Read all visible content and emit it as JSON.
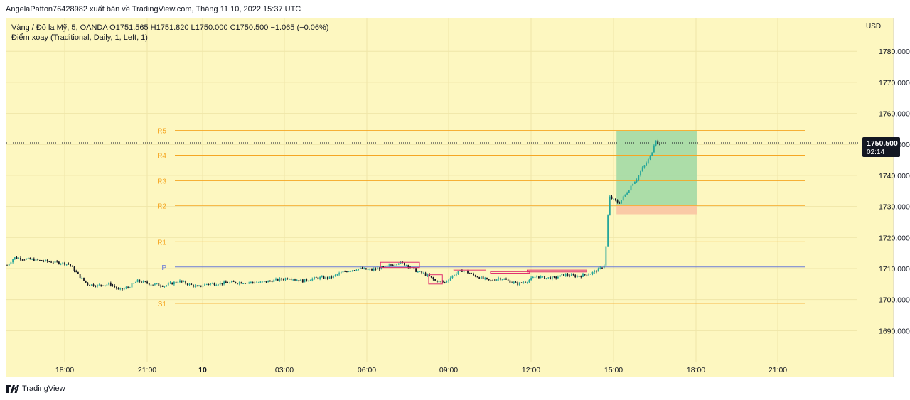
{
  "header": {
    "publisher_line": "AngelaPatton76428982 xuất bản về TradingView.com, Tháng 11 10, 2022 15:37 UTC"
  },
  "legend": {
    "symbol_line": "Vàng / Đô la Mỹ, 5, OANDA  O1751.565  H1751.820  L1750.000  C1750.500  −1.065 (−0.06%)",
    "indicator_line": "Điểm xoay (Traditional, Daily, 1, Left, 1)"
  },
  "footer": {
    "brand": "TradingView"
  },
  "price_scale": {
    "currency": "USD",
    "current_price": "1750.500",
    "countdown": "02:14"
  },
  "colors": {
    "background": "#fdf7c0",
    "up_candle": "#26a69a",
    "down_candle": "#131722",
    "pivot_line": "#f5a623",
    "pivot_p_line": "#6b7bd6",
    "target_zone": "#a3d9a5",
    "stop_zone": "#f9c4a3",
    "range_marker": "#e0306f"
  },
  "chart_data": {
    "type": "candlestick",
    "symbol": "Vàng / Đô la Mỹ, 5, OANDA",
    "ylim": [
      1680,
      1786
    ],
    "y_ticks": [
      1690,
      1700,
      1710,
      1720,
      1730,
      1740,
      1750,
      1760,
      1770,
      1780
    ],
    "y_tick_labels": [
      "1690.000",
      "1700.000",
      "1710.000",
      "1720.000",
      "1730.000",
      "1740.000",
      "1750.000",
      "1760.000",
      "1770.000",
      "1780.000"
    ],
    "x_ticks": [
      "18:00",
      "21:00",
      "10",
      "03:00",
      "06:00",
      "09:00",
      "12:00",
      "15:00",
      "18:00",
      "21:00"
    ],
    "pivot_levels": [
      {
        "label": "R5",
        "value": 1754.5
      },
      {
        "label": "R4",
        "value": 1746.5
      },
      {
        "label": "R3",
        "value": 1738.3
      },
      {
        "label": "R2",
        "value": 1730.3
      },
      {
        "label": "R1",
        "value": 1718.6
      },
      {
        "label": "P",
        "value": 1710.5
      },
      {
        "label": "S1",
        "value": 1698.8
      }
    ],
    "current_price": 1750.5,
    "position": {
      "entry": 1730.5,
      "target": 1754.5,
      "stop": 1727.5,
      "start": "13:55",
      "end": "16:50"
    },
    "price_path": [
      [
        "15:45",
        1711
      ],
      [
        "16:00",
        1713.5
      ],
      [
        "16:30",
        1713
      ],
      [
        "17:00",
        1712.5
      ],
      [
        "17:30",
        1712
      ],
      [
        "18:00",
        1711.5
      ],
      [
        "18:20",
        1708
      ],
      [
        "18:40",
        1705
      ],
      [
        "19:00",
        1704.5
      ],
      [
        "19:30",
        1705
      ],
      [
        "19:50",
        1703
      ],
      [
        "20:10",
        1704
      ],
      [
        "20:30",
        1706
      ],
      [
        "21:00",
        1705
      ],
      [
        "21:30",
        1704.5
      ],
      [
        "22:00",
        1706
      ],
      [
        "22:20",
        1705
      ],
      [
        "22:40",
        1704
      ],
      [
        "23:00",
        1705
      ],
      [
        "00:00",
        1705.5
      ],
      [
        "01:00",
        1705.5
      ],
      [
        "02:00",
        1707
      ],
      [
        "02:30",
        1706
      ],
      [
        "03:00",
        1707
      ],
      [
        "03:30",
        1707
      ],
      [
        "04:00",
        1709
      ],
      [
        "04:30",
        1710
      ],
      [
        "05:00",
        1709.5
      ],
      [
        "05:30",
        1710.5
      ],
      [
        "06:00",
        1712
      ],
      [
        "06:20",
        1711
      ],
      [
        "06:40",
        1709
      ],
      [
        "07:00",
        1708
      ],
      [
        "07:20",
        1706
      ],
      [
        "07:40",
        1705.5
      ],
      [
        "08:00",
        1708
      ],
      [
        "08:20",
        1709.5
      ],
      [
        "08:40",
        1708
      ],
      [
        "09:00",
        1707
      ],
      [
        "09:20",
        1706
      ],
      [
        "09:40",
        1707
      ],
      [
        "10:00",
        1706
      ],
      [
        "10:20",
        1705
      ],
      [
        "10:40",
        1706
      ],
      [
        "11:00",
        1707.5
      ],
      [
        "11:20",
        1707
      ],
      [
        "11:40",
        1707
      ],
      [
        "12:00",
        1708
      ],
      [
        "12:30",
        1707.5
      ],
      [
        "13:00",
        1708.5
      ],
      [
        "13:20",
        1710
      ],
      [
        "13:30",
        1711.5
      ],
      [
        "13:35",
        1725
      ],
      [
        "13:40",
        1733
      ],
      [
        "13:50",
        1732
      ],
      [
        "14:00",
        1731
      ],
      [
        "14:10",
        1733
      ],
      [
        "14:20",
        1735
      ],
      [
        "14:30",
        1737.5
      ],
      [
        "14:40",
        1739
      ],
      [
        "14:50",
        1742
      ],
      [
        "15:00",
        1744
      ],
      [
        "15:10",
        1746.5
      ],
      [
        "15:15",
        1749
      ],
      [
        "15:20",
        1752
      ],
      [
        "15:25",
        1750
      ],
      [
        "15:30",
        1750.5
      ]
    ],
    "range_markers": [
      {
        "start": "05:20",
        "end": "06:45",
        "low": 1710.3,
        "high": 1712
      },
      {
        "start": "07:05",
        "end": "07:35",
        "low": 1705,
        "high": 1708
      },
      {
        "start": "08:00",
        "end": "09:10",
        "low": 1709.5,
        "high": 1709.8
      },
      {
        "start": "09:20",
        "end": "10:45",
        "low": 1708.5,
        "high": 1709
      },
      {
        "start": "10:40",
        "end": "12:50",
        "low": 1708.9,
        "high": 1709.5
      }
    ]
  }
}
